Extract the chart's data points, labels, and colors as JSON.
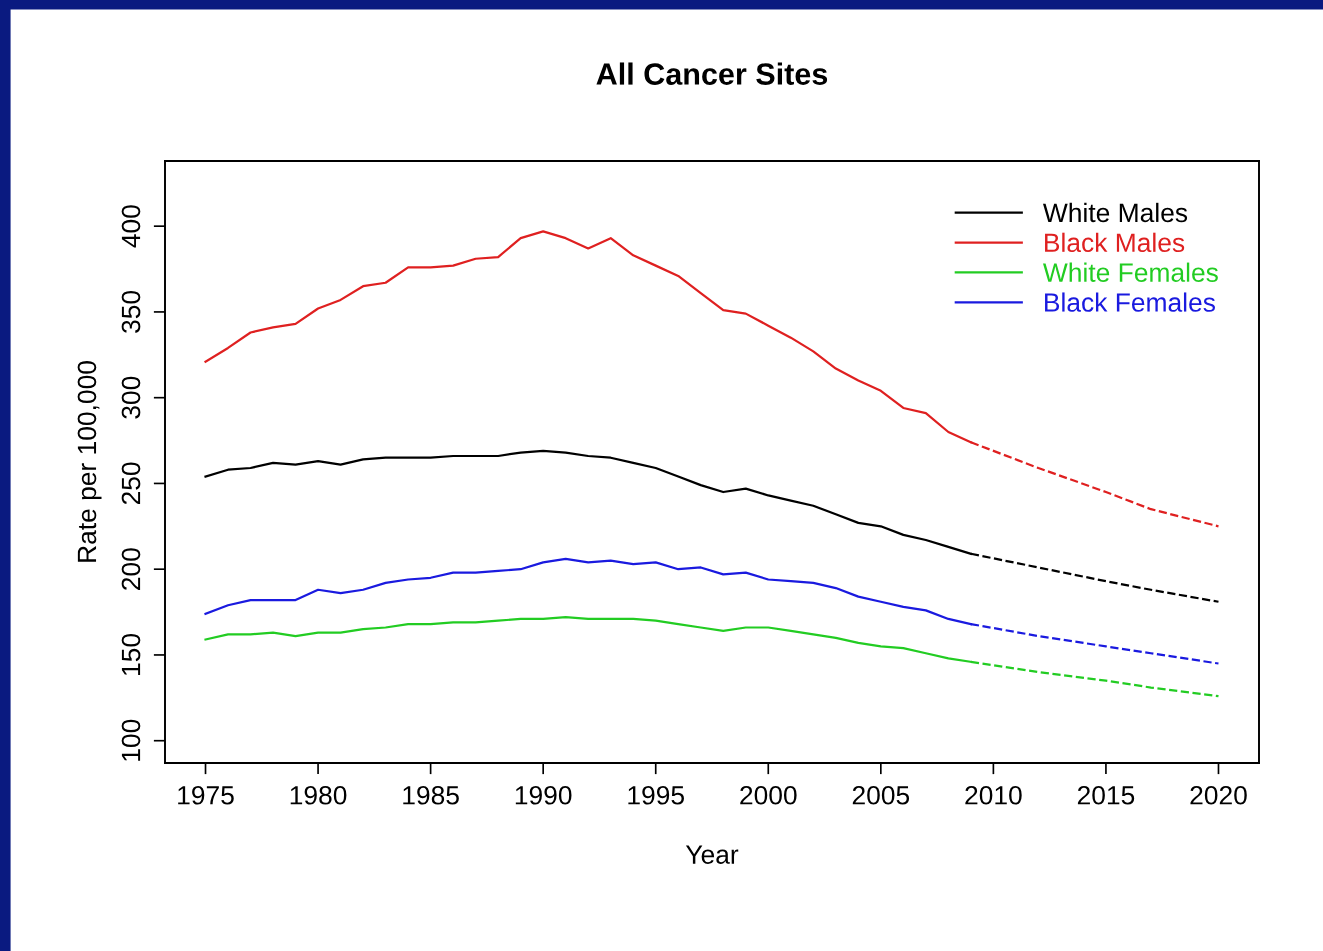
{
  "chart_data": {
    "type": "line",
    "title": "All Cancer Sites",
    "xlabel": "Year",
    "ylabel": "Rate per 100,000",
    "x": [
      1975,
      1976,
      1977,
      1978,
      1979,
      1980,
      1981,
      1982,
      1983,
      1984,
      1985,
      1986,
      1987,
      1988,
      1989,
      1990,
      1991,
      1992,
      1993,
      1994,
      1995,
      1996,
      1997,
      1998,
      1999,
      2000,
      2001,
      2002,
      2003,
      2004,
      2005,
      2006,
      2007,
      2008,
      2009
    ],
    "series": [
      {
        "name": "White Males",
        "color": "#000000",
        "line_style": "solid",
        "values": [
          254,
          258,
          259,
          262,
          261,
          263,
          261,
          264,
          265,
          265,
          265,
          266,
          266,
          266,
          268,
          269,
          268,
          266,
          265,
          262,
          259,
          254,
          249,
          245,
          247,
          243,
          240,
          237,
          232,
          227,
          225,
          220,
          217,
          213,
          209
        ]
      },
      {
        "name": "Black Males",
        "color": "#df2020",
        "line_style": "solid",
        "values": [
          321,
          329,
          338,
          341,
          343,
          352,
          357,
          365,
          367,
          376,
          376,
          377,
          381,
          382,
          393,
          397,
          393,
          387,
          393,
          383,
          377,
          371,
          361,
          351,
          349,
          342,
          335,
          327,
          317,
          310,
          304,
          294,
          291,
          280,
          274
        ]
      },
      {
        "name": "White Females",
        "color": "#22cc22",
        "line_style": "solid",
        "values": [
          159,
          162,
          162,
          163,
          161,
          163,
          163,
          165,
          166,
          168,
          168,
          169,
          169,
          170,
          171,
          171,
          172,
          171,
          171,
          171,
          170,
          168,
          166,
          164,
          166,
          166,
          164,
          162,
          160,
          157,
          155,
          154,
          151,
          148,
          146
        ]
      },
      {
        "name": "Black Females",
        "color": "#1a1adf",
        "line_style": "solid",
        "values": [
          174,
          179,
          182,
          182,
          182,
          188,
          186,
          188,
          192,
          194,
          195,
          198,
          198,
          199,
          200,
          204,
          206,
          204,
          205,
          203,
          204,
          200,
          201,
          197,
          198,
          194,
          193,
          192,
          189,
          184,
          181,
          178,
          176,
          171,
          168
        ]
      },
      {
        "color": "#000000",
        "line_style": "dashed",
        "x": [
          2009,
          2012,
          2015,
          2017,
          2020
        ],
        "values": [
          209,
          201,
          193,
          188,
          181
        ]
      },
      {
        "color": "#df2020",
        "line_style": "dashed",
        "x": [
          2009,
          2012,
          2015,
          2017,
          2020
        ],
        "values": [
          274,
          259,
          245,
          235,
          225
        ]
      },
      {
        "color": "#22cc22",
        "line_style": "dashed",
        "x": [
          2009,
          2012,
          2015,
          2017,
          2020
        ],
        "values": [
          146,
          140,
          135,
          131,
          126
        ]
      },
      {
        "color": "#1a1adf",
        "line_style": "dashed",
        "x": [
          2009,
          2012,
          2015,
          2017,
          2020
        ],
        "values": [
          168,
          161,
          155,
          151,
          145
        ]
      }
    ],
    "xlim": [
      1973.2,
      2021.8
    ],
    "ylim": [
      87,
      438
    ],
    "xticks": [
      1975,
      1980,
      1985,
      1990,
      1995,
      2000,
      2005,
      2010,
      2015,
      2020
    ],
    "yticks": [
      100,
      150,
      200,
      250,
      300,
      350,
      400
    ],
    "grid": false,
    "legend": "top right"
  }
}
